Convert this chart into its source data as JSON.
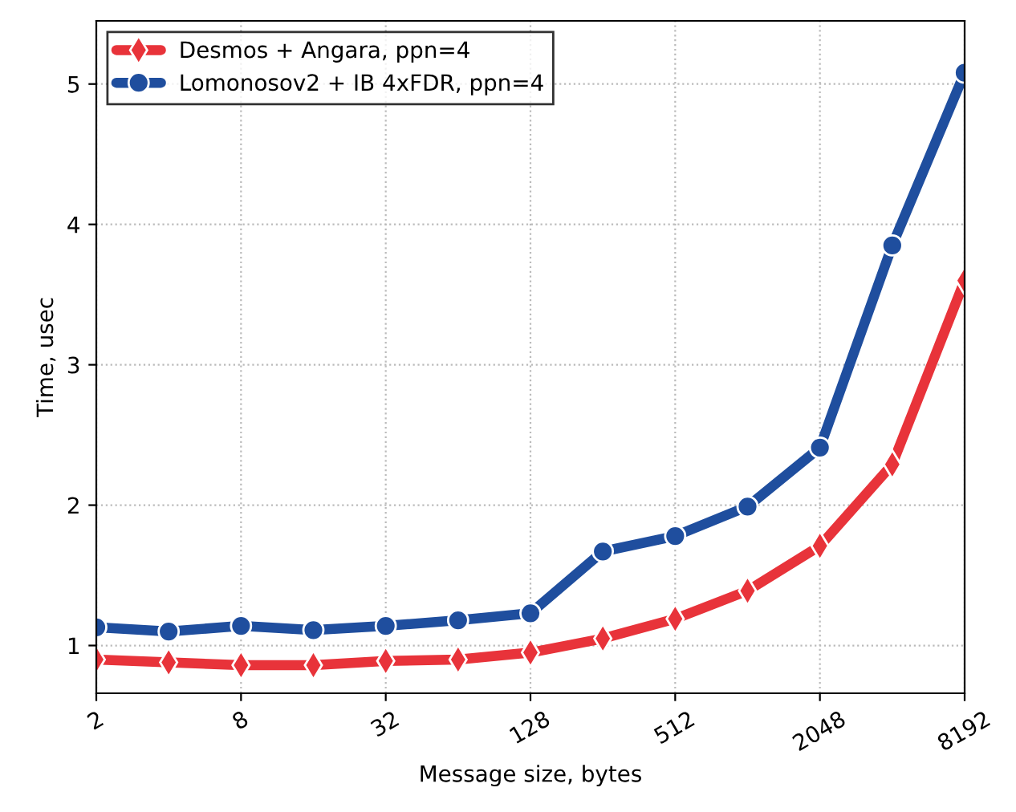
{
  "chart_data": {
    "type": "line",
    "xlabel": "Message size, bytes",
    "ylabel": "Time, usec",
    "log": "x",
    "x": [
      2,
      4,
      8,
      16,
      32,
      64,
      128,
      256,
      512,
      1024,
      2048,
      4096,
      8192
    ],
    "series": [
      {
        "name": "Desmos + Angara, ppn=4",
        "color": "#e8333a",
        "marker": "diamond",
        "values": [
          0.9,
          0.88,
          0.86,
          0.86,
          0.89,
          0.9,
          0.95,
          1.05,
          1.19,
          1.39,
          1.71,
          2.29,
          3.6
        ]
      },
      {
        "name": "Lomonosov2 + IB 4xFDR, ppn=4",
        "color": "#1f4e9e",
        "marker": "circle",
        "values": [
          1.13,
          1.1,
          1.14,
          1.11,
          1.14,
          1.18,
          1.23,
          1.67,
          1.78,
          1.99,
          2.41,
          3.85,
          5.08
        ]
      }
    ],
    "xlim": [
      2,
      8192
    ],
    "xticks": [
      2,
      8,
      32,
      128,
      512,
      2048,
      8192
    ],
    "ylim": [
      0.66,
      5.45
    ],
    "yticks": [
      1,
      2,
      3,
      4,
      5
    ],
    "grid": true,
    "legend": "top left",
    "line_style": "solid"
  }
}
